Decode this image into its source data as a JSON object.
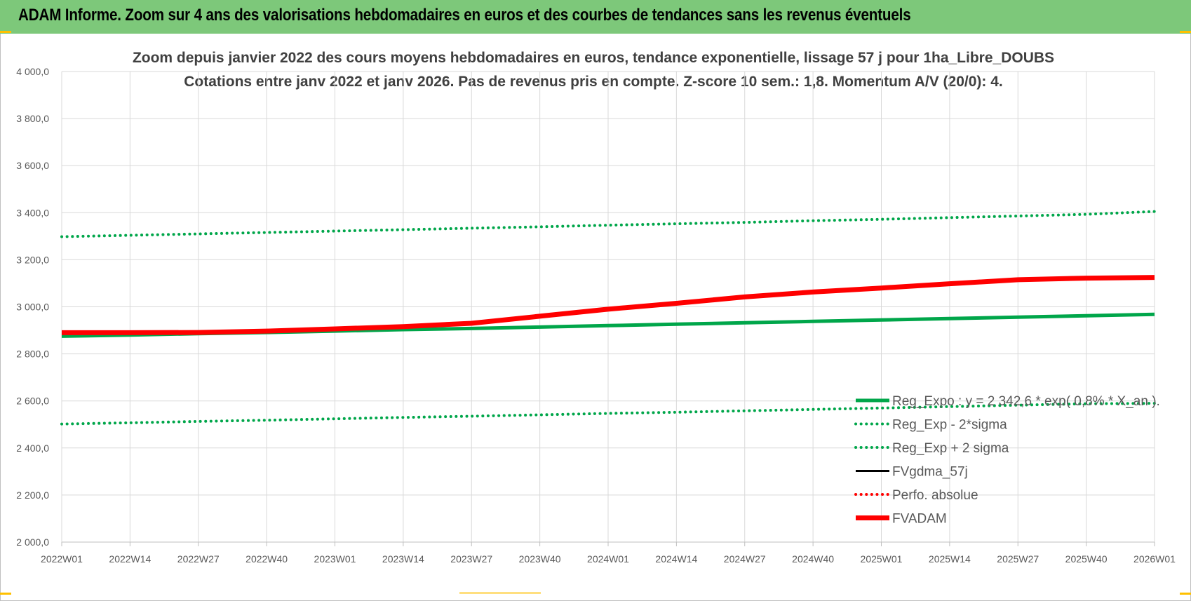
{
  "header": {
    "title": "ADAM Informe. Zoom sur 4 ans des valorisations hebdomadaires en euros et des courbes de tendances sans les revenus éventuels"
  },
  "colors": {
    "banner": "#7dc87a",
    "green": "#00a64a",
    "red": "#ff0000",
    "black": "#000000",
    "grid": "#d9d9d9",
    "accent_corner": "#ffc000"
  },
  "chart_data": {
    "type": "line",
    "title": "Zoom depuis janvier 2022 des cours moyens hebdomadaires en euros, tendance exponentielle, lissage 57 j pour 1ha_Libre_DOUBS",
    "subtitle": "Cotations entre janv 2022 et janv 2026. Pas de revenus pris en compte. Z-score 10 sem.: 1,8. Momentum A/V (20/0): 4.",
    "xlabel": "",
    "ylabel": "",
    "ylim": [
      2000,
      4000
    ],
    "yticks": [
      "4 000,0",
      "3 800,0",
      "3 600,0",
      "3 400,0",
      "3 200,0",
      "3 000,0",
      "2 800,0",
      "2 600,0",
      "2 400,0",
      "2 200,0",
      "2 000,0"
    ],
    "xticks": [
      "2022W01",
      "2022W14",
      "2022W27",
      "2022W40",
      "2023W01",
      "2023W14",
      "2023W27",
      "2023W40",
      "2024W01",
      "2024W14",
      "2024W27",
      "2024W40",
      "2025W01",
      "2025W14",
      "2025W27",
      "2025W40",
      "2026W01"
    ],
    "grid": true,
    "legend_position": "bottom-right",
    "series": [
      {
        "name": "Reg_Expo : y = 2 342,6 * exp( 0,8% * X_an ).",
        "style": "solid-thick",
        "color": "#00a64a",
        "values": [
          2875,
          2880,
          2886,
          2891,
          2897,
          2903,
          2908,
          2914,
          2920,
          2926,
          2932,
          2938,
          2944,
          2950,
          2956,
          2962,
          2968
        ]
      },
      {
        "name": "Reg_Exp - 2*sigma",
        "style": "dotted",
        "color": "#00a64a",
        "values": [
          2502,
          2507,
          2513,
          2518,
          2524,
          2530,
          2535,
          2541,
          2547,
          2552,
          2558,
          2564,
          2570,
          2576,
          2582,
          2588,
          2590
        ]
      },
      {
        "name": "Reg_Exp + 2 sigma",
        "style": "dotted",
        "color": "#00a64a",
        "values": [
          3298,
          3304,
          3310,
          3316,
          3322,
          3328,
          3334,
          3340,
          3347,
          3353,
          3359,
          3366,
          3372,
          3379,
          3386,
          3393,
          3405
        ]
      },
      {
        "name": "FVgdma_57j",
        "style": "solid",
        "color": "#000000",
        "values": []
      },
      {
        "name": "Perfo. absolue",
        "style": "dotted",
        "color": "#ff0000",
        "values": []
      },
      {
        "name": "FVADAM",
        "style": "solid-thick",
        "color": "#ff0000",
        "values": [
          2890,
          2890,
          2891,
          2897,
          2906,
          2916,
          2930,
          2960,
          2990,
          3015,
          3042,
          3063,
          3080,
          3098,
          3115,
          3122,
          3125
        ]
      }
    ]
  }
}
